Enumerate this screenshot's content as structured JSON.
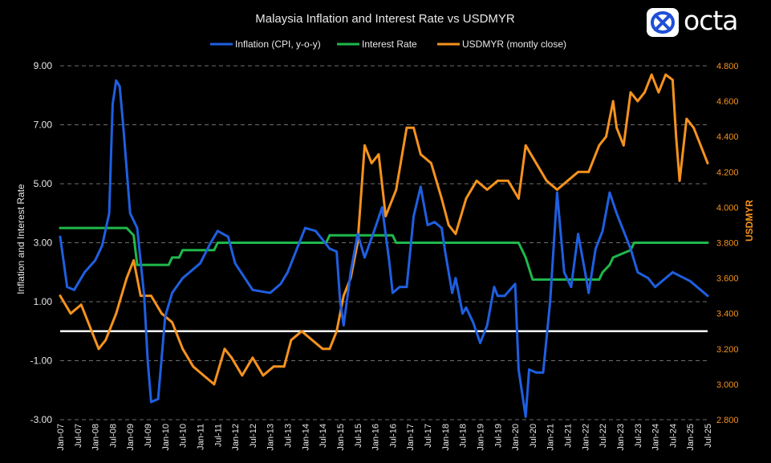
{
  "brand": {
    "logo_text": "octa",
    "logo_icon": "octa-x-logo-icon"
  },
  "colors": {
    "background": "#000000",
    "inflation": "#1f5fe0",
    "interest": "#1fb84a",
    "usdmyr": "#f5921e",
    "zero_line": "#ffffff",
    "grid": "#6e6e6e",
    "text": "#e8e8e8"
  },
  "chart_data": {
    "type": "line",
    "title": "Malaysia Inflation and Interest Rate vs USDMYR",
    "ylabel": "Inflation and Interest Rate",
    "y2label": "USDMYR",
    "ylim": [
      -3,
      9
    ],
    "y2lim": [
      2.8,
      4.8
    ],
    "yticks": [
      "9.00",
      "7.00",
      "5.00",
      "3.00",
      "1.00",
      "-1.00",
      "-3.00"
    ],
    "y2ticks": [
      "4.800",
      "4.600",
      "4.400",
      "4.200",
      "4.000",
      "3.800",
      "3.600",
      "3.400",
      "3.200",
      "3.000",
      "2.800"
    ],
    "x_tick_labels": [
      "Jan-07",
      "Jul-07",
      "Jan-08",
      "Jul-08",
      "Jan-09",
      "Jul-09",
      "Jan-10",
      "Jul-10",
      "Jan-11",
      "Jul-11",
      "Jan-12",
      "Jul-12",
      "Jan-13",
      "Jul-13",
      "Jan-14",
      "Jul-14",
      "Jan-15",
      "Jul-15",
      "Jan-16",
      "Jul-16",
      "Jan-17",
      "Jul-17",
      "Jan-18",
      "Jul-18",
      "Jan-19",
      "Jul-19",
      "Jan-20",
      "Jul-20",
      "Jan-21",
      "Jul-21",
      "Jan-22",
      "Jul-22",
      "Jan-23",
      "Jul-23",
      "Jan-24",
      "Jul-24",
      "Jan-25",
      "Jul-25"
    ],
    "legend_position": "top",
    "grid": "horizontal dashed",
    "zero_line": 0,
    "series": [
      {
        "name": "Inflation (CPI, y-o-y)",
        "axis": "left",
        "x": [
          2007.0,
          2007.2,
          2007.4,
          2007.7,
          2008.0,
          2008.2,
          2008.4,
          2008.5,
          2008.6,
          2008.7,
          2008.8,
          2009.0,
          2009.2,
          2009.4,
          2009.5,
          2009.6,
          2009.8,
          2010.0,
          2010.2,
          2010.5,
          2011.0,
          2011.3,
          2011.5,
          2011.8,
          2012.0,
          2012.5,
          2013.0,
          2013.3,
          2013.5,
          2014.0,
          2014.3,
          2014.5,
          2014.7,
          2014.9,
          2015.0,
          2015.1,
          2015.3,
          2015.5,
          2015.7,
          2016.0,
          2016.2,
          2016.4,
          2016.5,
          2016.7,
          2016.9,
          2017.1,
          2017.3,
          2017.5,
          2017.7,
          2017.9,
          2018.0,
          2018.2,
          2018.3,
          2018.5,
          2018.6,
          2018.8,
          2019.0,
          2019.2,
          2019.4,
          2019.5,
          2019.7,
          2020.0,
          2020.1,
          2020.3,
          2020.4,
          2020.6,
          2020.8,
          2021.0,
          2021.2,
          2021.4,
          2021.6,
          2021.8,
          2022.0,
          2022.1,
          2022.3,
          2022.5,
          2022.7,
          2022.9,
          2023.0,
          2023.3,
          2023.5,
          2023.8,
          2024.0,
          2024.5,
          2025.0,
          2025.3,
          2025.5
        ],
        "y": [
          3.2,
          1.5,
          1.4,
          2.0,
          2.4,
          2.9,
          4.0,
          7.7,
          8.5,
          8.3,
          7.0,
          4.0,
          3.5,
          1.2,
          -1.0,
          -2.4,
          -2.3,
          0.5,
          1.3,
          1.8,
          2.3,
          3.0,
          3.4,
          3.2,
          2.3,
          1.4,
          1.3,
          1.6,
          2.0,
          3.5,
          3.4,
          3.1,
          2.8,
          2.7,
          1.0,
          0.2,
          2.0,
          3.3,
          2.5,
          3.5,
          4.2,
          2.4,
          1.3,
          1.5,
          1.5,
          3.9,
          4.9,
          3.6,
          3.7,
          3.5,
          2.7,
          1.3,
          1.8,
          0.6,
          0.8,
          0.3,
          -0.4,
          0.2,
          1.5,
          1.2,
          1.2,
          1.6,
          -1.3,
          -2.9,
          -1.3,
          -1.4,
          -1.4,
          1.0,
          4.7,
          2.0,
          1.5,
          3.3,
          2.0,
          1.3,
          2.8,
          3.4,
          4.7,
          4.0,
          3.7,
          2.8,
          2.0,
          1.8,
          1.5,
          2.0,
          1.7,
          1.4,
          1.2
        ]
      },
      {
        "name": "Interest Rate",
        "axis": "left",
        "x": [
          2007.0,
          2008.9,
          2009.1,
          2009.2,
          2010.1,
          2010.2,
          2010.4,
          2010.5,
          2011.4,
          2011.5,
          2014.6,
          2014.7,
          2016.5,
          2016.6,
          2019.4,
          2019.5,
          2020.1,
          2020.2,
          2020.3,
          2020.5,
          2022.4,
          2022.5,
          2022.7,
          2022.8,
          2023.3,
          2023.4,
          2025.5
        ],
        "y": [
          3.5,
          3.5,
          3.25,
          2.25,
          2.25,
          2.5,
          2.5,
          2.75,
          2.75,
          3.0,
          3.0,
          3.25,
          3.25,
          3.0,
          3.0,
          3.0,
          3.0,
          2.75,
          2.5,
          1.75,
          1.75,
          2.0,
          2.25,
          2.5,
          2.75,
          3.0,
          3.0
        ]
      },
      {
        "name": "USDMYR (montly close)",
        "axis": "right",
        "x": [
          2007.0,
          2007.3,
          2007.6,
          2007.9,
          2008.1,
          2008.3,
          2008.6,
          2008.9,
          2009.1,
          2009.3,
          2009.6,
          2009.9,
          2010.2,
          2010.5,
          2010.8,
          2011.1,
          2011.4,
          2011.7,
          2011.9,
          2012.2,
          2012.5,
          2012.8,
          2013.1,
          2013.4,
          2013.6,
          2013.9,
          2014.2,
          2014.5,
          2014.7,
          2014.9,
          2015.1,
          2015.3,
          2015.5,
          2015.7,
          2015.9,
          2016.1,
          2016.3,
          2016.6,
          2016.9,
          2017.1,
          2017.3,
          2017.6,
          2017.9,
          2018.1,
          2018.3,
          2018.6,
          2018.9,
          2019.2,
          2019.5,
          2019.8,
          2020.1,
          2020.3,
          2020.6,
          2020.9,
          2021.2,
          2021.5,
          2021.8,
          2022.1,
          2022.4,
          2022.6,
          2022.8,
          2022.9,
          2023.1,
          2023.3,
          2023.5,
          2023.7,
          2023.9,
          2024.1,
          2024.3,
          2024.5,
          2024.6,
          2024.7,
          2024.9,
          2025.1,
          2025.3,
          2025.5
        ],
        "y": [
          3.5,
          3.4,
          3.45,
          3.3,
          3.2,
          3.25,
          3.4,
          3.6,
          3.7,
          3.5,
          3.5,
          3.4,
          3.35,
          3.2,
          3.1,
          3.05,
          3.0,
          3.2,
          3.15,
          3.05,
          3.15,
          3.05,
          3.1,
          3.1,
          3.25,
          3.3,
          3.25,
          3.2,
          3.2,
          3.3,
          3.5,
          3.6,
          3.8,
          4.35,
          4.25,
          4.3,
          3.95,
          4.1,
          4.45,
          4.45,
          4.3,
          4.25,
          4.05,
          3.9,
          3.85,
          4.05,
          4.15,
          4.1,
          4.15,
          4.15,
          4.05,
          4.35,
          4.25,
          4.15,
          4.1,
          4.15,
          4.2,
          4.2,
          4.35,
          4.4,
          4.6,
          4.45,
          4.35,
          4.65,
          4.6,
          4.65,
          4.75,
          4.65,
          4.75,
          4.72,
          4.4,
          4.15,
          4.5,
          4.45,
          4.35,
          4.25
        ]
      }
    ]
  }
}
